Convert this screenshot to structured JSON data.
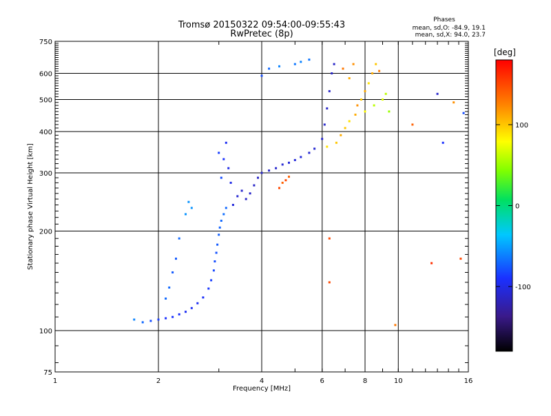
{
  "chart_data": {
    "type": "scatter",
    "title": "Tromsø 20150322 09:54:00-09:55:43",
    "subtitle": "RwPretec (8p)",
    "stats": {
      "heading": "Phases",
      "line1": "mean, sd,O: -84.9, 19.1",
      "line2": "mean, sd,X:  94.0, 23.7"
    },
    "xlabel": "Frequency [MHz]",
    "ylabel": "Stationary phase Virtual Height [km]",
    "xscale": "log",
    "yscale": "log",
    "xlim": [
      1,
      16
    ],
    "ylim": [
      75,
      750
    ],
    "x_ticks": [
      1,
      2,
      4,
      6,
      8,
      10,
      16
    ],
    "x_tick_labels": [
      "1",
      "2",
      "4",
      "6",
      "8",
      "10",
      "16"
    ],
    "y_ticks": [
      75,
      100,
      200,
      300,
      400,
      500,
      600,
      750
    ],
    "y_tick_labels": [
      "75",
      "100",
      "200",
      "300",
      "400",
      "500",
      "600",
      "750"
    ],
    "grid": true,
    "colorbar": {
      "label": "[deg]",
      "range": [
        -180,
        180
      ],
      "ticks": [
        -100,
        0,
        100
      ],
      "tick_labels": [
        "-100",
        "0",
        "100"
      ]
    },
    "series": [
      {
        "points": [
          [
            1.7,
            108,
            -60
          ],
          [
            1.8,
            106,
            -70
          ],
          [
            1.9,
            107,
            -80
          ],
          [
            2.0,
            108,
            -85
          ],
          [
            2.1,
            109,
            -90
          ],
          [
            2.2,
            110,
            -90
          ],
          [
            2.3,
            112,
            -92
          ],
          [
            2.4,
            114,
            -95
          ],
          [
            2.5,
            117,
            -95
          ],
          [
            2.6,
            121,
            -95
          ],
          [
            2.7,
            126,
            -92
          ],
          [
            2.8,
            134,
            -88
          ],
          [
            2.85,
            142,
            -85
          ],
          [
            2.9,
            152,
            -82
          ],
          [
            2.92,
            162,
            -80
          ],
          [
            2.95,
            172,
            -78
          ],
          [
            2.97,
            182,
            -75
          ],
          [
            3.0,
            195,
            -73
          ],
          [
            3.02,
            205,
            -72
          ],
          [
            3.05,
            215,
            -70
          ],
          [
            3.1,
            225,
            -68
          ],
          [
            3.15,
            235,
            -70
          ],
          [
            2.1,
            125,
            -70
          ],
          [
            2.15,
            135,
            -70
          ],
          [
            2.2,
            150,
            -75
          ],
          [
            2.25,
            165,
            -75
          ],
          [
            2.3,
            190,
            -70
          ],
          [
            2.4,
            225,
            -55
          ],
          [
            2.45,
            245,
            -55
          ],
          [
            2.5,
            235,
            -55
          ],
          [
            3.0,
            345,
            -85
          ],
          [
            3.05,
            290,
            -80
          ],
          [
            3.1,
            330,
            -90
          ],
          [
            3.15,
            370,
            -95
          ],
          [
            3.2,
            310,
            -100
          ],
          [
            3.25,
            280,
            -100
          ],
          [
            3.3,
            240,
            -105
          ],
          [
            3.4,
            255,
            -108
          ],
          [
            3.5,
            265,
            -110
          ],
          [
            3.6,
            250,
            -112
          ],
          [
            3.7,
            260,
            -112
          ],
          [
            3.8,
            275,
            -112
          ],
          [
            3.9,
            290,
            -112
          ],
          [
            4.0,
            300,
            -112
          ],
          [
            4.2,
            305,
            -110
          ],
          [
            4.4,
            310,
            -110
          ],
          [
            4.6,
            318,
            -108
          ],
          [
            4.8,
            322,
            -105
          ],
          [
            5.0,
            328,
            -105
          ],
          [
            5.2,
            335,
            -105
          ],
          [
            5.5,
            345,
            -108
          ],
          [
            5.7,
            355,
            -108
          ],
          [
            6.0,
            380,
            -110
          ],
          [
            6.1,
            420,
            -110
          ],
          [
            6.2,
            470,
            -112
          ],
          [
            6.3,
            530,
            -112
          ],
          [
            6.4,
            600,
            -112
          ],
          [
            6.5,
            640,
            -112
          ],
          [
            4.6,
            280,
            140
          ],
          [
            4.7,
            285,
            150
          ],
          [
            4.8,
            292,
            140
          ],
          [
            4.5,
            270,
            150
          ],
          [
            4.0,
            590,
            -80
          ],
          [
            4.2,
            620,
            -70
          ],
          [
            4.5,
            630,
            -60
          ],
          [
            5.0,
            640,
            -65
          ],
          [
            5.5,
            660,
            -65
          ],
          [
            5.2,
            650,
            -60
          ],
          [
            6.2,
            360,
            90
          ],
          [
            6.6,
            370,
            100
          ],
          [
            6.8,
            390,
            110
          ],
          [
            7.0,
            410,
            100
          ],
          [
            7.2,
            430,
            90
          ],
          [
            7.5,
            450,
            110
          ],
          [
            7.6,
            480,
            120
          ],
          [
            7.8,
            500,
            100
          ],
          [
            8.0,
            530,
            110
          ],
          [
            8.2,
            560,
            90
          ],
          [
            8.4,
            600,
            110
          ],
          [
            8.6,
            640,
            100
          ],
          [
            8.0,
            460,
            80
          ],
          [
            8.5,
            480,
            60
          ],
          [
            9.0,
            500,
            70
          ],
          [
            9.2,
            520,
            60
          ],
          [
            9.4,
            460,
            50
          ],
          [
            7.2,
            580,
            110
          ],
          [
            6.9,
            620,
            130
          ],
          [
            7.4,
            640,
            120
          ],
          [
            8.8,
            610,
            130
          ],
          [
            6.3,
            190,
            150
          ],
          [
            6.3,
            140,
            150
          ],
          [
            9.8,
            104,
            130
          ],
          [
            11.0,
            420,
            140
          ],
          [
            12.5,
            160,
            160
          ],
          [
            13.0,
            520,
            -110
          ],
          [
            13.5,
            370,
            -90
          ],
          [
            14.5,
            490,
            120
          ],
          [
            15.2,
            165,
            150
          ],
          [
            15.5,
            455,
            -80
          ]
        ]
      }
    ]
  }
}
